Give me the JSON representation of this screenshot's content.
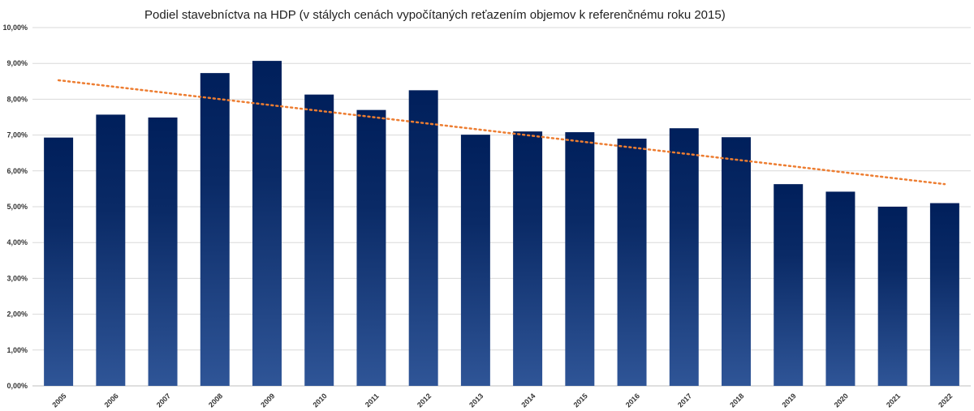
{
  "chart_data": {
    "type": "bar",
    "title": "Podiel stavebníctva na HDP (v stálych cenách vypočítaných reťazením objemov k referenčnému roku 2015)",
    "xlabel": "",
    "ylabel": "",
    "categories": [
      "2005",
      "2006",
      "2007",
      "2008",
      "2009",
      "2010",
      "2011",
      "2012",
      "2013",
      "2014",
      "2015",
      "2016",
      "2017",
      "2018",
      "2019",
      "2020",
      "2021",
      "2022"
    ],
    "series": [
      {
        "values": [
          6.93,
          7.57,
          7.49,
          8.73,
          9.07,
          8.13,
          7.7,
          8.25,
          7.01,
          7.1,
          7.08,
          6.9,
          7.19,
          6.94,
          5.63,
          5.42,
          5.0,
          5.1
        ]
      }
    ],
    "trendline": {
      "type": "linear",
      "start": 8.53,
      "end": 5.63
    },
    "ylim": [
      0,
      10
    ],
    "yticks": [
      0,
      1,
      2,
      3,
      4,
      5,
      6,
      7,
      8,
      9,
      10
    ],
    "ytick_labels": [
      "0,00%",
      "1,00%",
      "2,00%",
      "3,00%",
      "4,00%",
      "5,00%",
      "6,00%",
      "7,00%",
      "8,00%",
      "9,00%",
      "10,00%"
    ],
    "grid": true,
    "legend": "none",
    "colors": {
      "bar_top": "#001f5b",
      "bar_bottom": "#2f5597",
      "trendline": "#ed7d31",
      "grid": "#d9d9d9"
    }
  }
}
